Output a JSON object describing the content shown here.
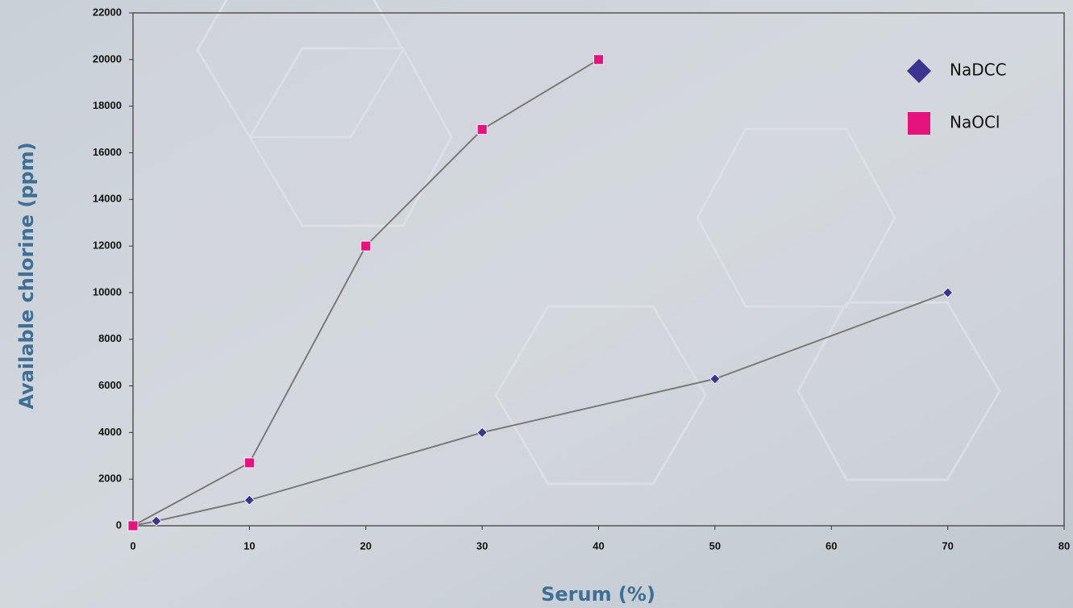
{
  "chart_data": {
    "type": "line",
    "xlabel": "Serum (%)",
    "ylabel": "Available chlorine (ppm)",
    "xlim": [
      0,
      80
    ],
    "xticks": [
      0,
      10,
      20,
      30,
      40,
      50,
      60,
      70,
      80
    ],
    "ylim": [
      0,
      22000
    ],
    "yticks": [
      0,
      2000,
      4000,
      6000,
      8000,
      10000,
      12000,
      14000,
      16000,
      18000,
      20000,
      22000
    ],
    "grid": false,
    "line_color": "#7a7a7a",
    "legend": "upper right",
    "series": [
      {
        "name": "NaDCC",
        "color": "#3a3590",
        "marker": "diamond",
        "x": [
          0,
          2,
          10,
          30,
          50,
          70
        ],
        "values": [
          0,
          200,
          1100,
          4000,
          6300,
          10000
        ]
      },
      {
        "name": "NaOCl",
        "color": "#e6137f",
        "marker": "square",
        "x": [
          0,
          10,
          20,
          30,
          40
        ],
        "values": [
          0,
          2700,
          12000,
          17000,
          20000
        ]
      }
    ]
  }
}
